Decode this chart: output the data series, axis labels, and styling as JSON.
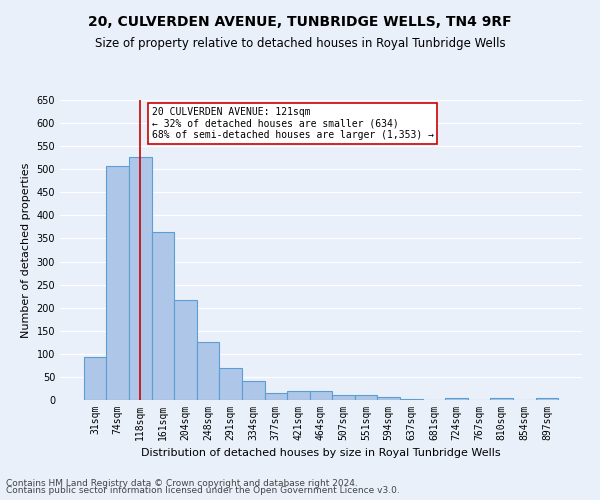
{
  "title1": "20, CULVERDEN AVENUE, TUNBRIDGE WELLS, TN4 9RF",
  "title2": "Size of property relative to detached houses in Royal Tunbridge Wells",
  "xlabel": "Distribution of detached houses by size in Royal Tunbridge Wells",
  "ylabel": "Number of detached properties",
  "categories": [
    "31sqm",
    "74sqm",
    "118sqm",
    "161sqm",
    "204sqm",
    "248sqm",
    "291sqm",
    "334sqm",
    "377sqm",
    "421sqm",
    "464sqm",
    "507sqm",
    "551sqm",
    "594sqm",
    "637sqm",
    "681sqm",
    "724sqm",
    "767sqm",
    "810sqm",
    "854sqm",
    "897sqm"
  ],
  "values": [
    93,
    507,
    527,
    365,
    216,
    125,
    69,
    42,
    16,
    20,
    20,
    11,
    11,
    6,
    3,
    0,
    5,
    0,
    5,
    0,
    5
  ],
  "bar_color": "#aec6e8",
  "bar_edge_color": "#5a9fd4",
  "highlight_index": 2,
  "highlight_line_color": "#cc0000",
  "annotation_text": "20 CULVERDEN AVENUE: 121sqm\n← 32% of detached houses are smaller (634)\n68% of semi-detached houses are larger (1,353) →",
  "annotation_box_color": "#ffffff",
  "annotation_box_edge": "#cc0000",
  "ylim": [
    0,
    650
  ],
  "yticks": [
    0,
    50,
    100,
    150,
    200,
    250,
    300,
    350,
    400,
    450,
    500,
    550,
    600,
    650
  ],
  "footer1": "Contains HM Land Registry data © Crown copyright and database right 2024.",
  "footer2": "Contains public sector information licensed under the Open Government Licence v3.0.",
  "bg_color": "#eaf0fa",
  "grid_color": "#ffffff",
  "title1_fontsize": 10,
  "title2_fontsize": 8.5,
  "xlabel_fontsize": 8,
  "ylabel_fontsize": 8,
  "tick_fontsize": 7,
  "footer_fontsize": 6.5
}
